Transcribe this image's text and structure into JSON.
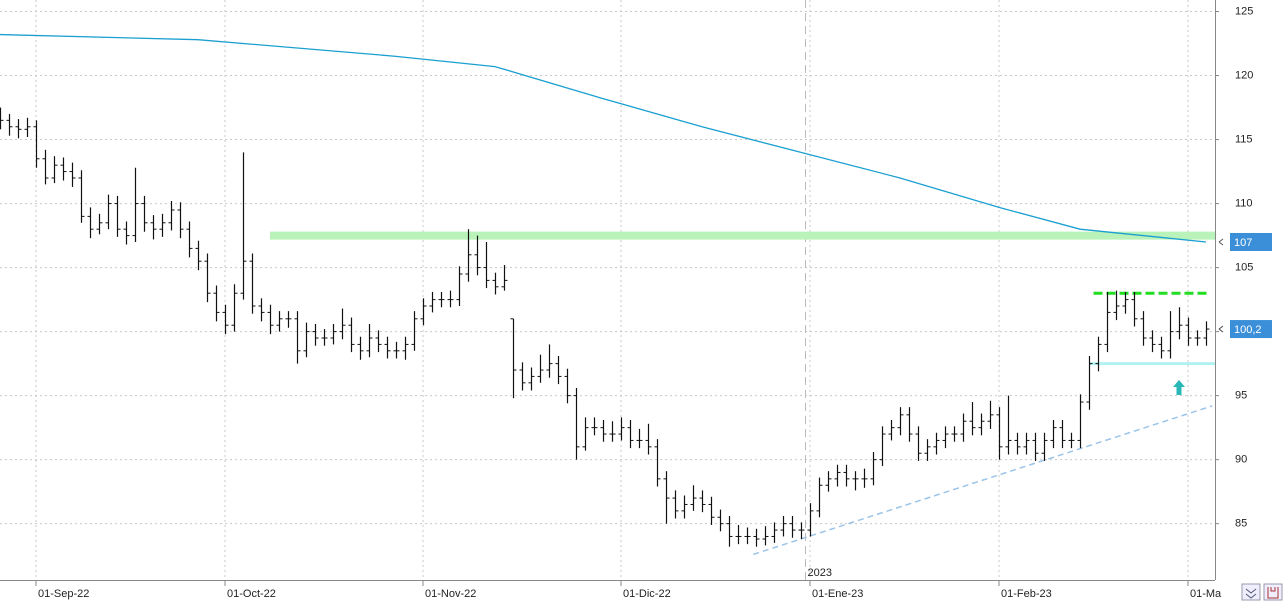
{
  "chart_data": {
    "type": "ohlc",
    "xlim": [
      -4,
      131
    ],
    "ylim": [
      80.6,
      125.9
    ],
    "yticks": [
      85,
      90,
      95,
      100,
      105,
      110,
      115,
      120,
      125
    ],
    "xticks": [
      {
        "value": 0,
        "label": "01-Sep-22"
      },
      {
        "value": 21,
        "label": "01-Oct-22"
      },
      {
        "value": 43,
        "label": "01-Nov-22"
      },
      {
        "value": 65,
        "label": "01-Dic-22"
      },
      {
        "value": 86,
        "label": "01-Ene-23"
      },
      {
        "value": 107,
        "label": "01-Feb-23"
      },
      {
        "value": 128,
        "label": "01-Ma"
      }
    ],
    "year_marker": {
      "value": 85.5,
      "label": "2023"
    },
    "grid": true,
    "bar_color": "#111111",
    "x": [
      -4,
      -3,
      -2,
      -1,
      0,
      1,
      2,
      3,
      4,
      5,
      6,
      7,
      8,
      9,
      10,
      11,
      12,
      13,
      14,
      15,
      16,
      17,
      18,
      19,
      20,
      21,
      22,
      23,
      24,
      25,
      26,
      27,
      28,
      29,
      30,
      31,
      32,
      33,
      34,
      35,
      36,
      37,
      38,
      39,
      40,
      41,
      42,
      43,
      44,
      45,
      46,
      47,
      48,
      49,
      50,
      51,
      52,
      53,
      54,
      55,
      56,
      57,
      58,
      59,
      60,
      61,
      62,
      63,
      64,
      65,
      66,
      67,
      68,
      69,
      70,
      71,
      72,
      73,
      74,
      75,
      76,
      77,
      78,
      79,
      80,
      81,
      82,
      83,
      84,
      85,
      86,
      87,
      88,
      89,
      90,
      91,
      92,
      93,
      94,
      95,
      96,
      97,
      98,
      99,
      100,
      101,
      102,
      103,
      104,
      105,
      106,
      107,
      108,
      109,
      110,
      111,
      112,
      113,
      114,
      115,
      116,
      117,
      118,
      119,
      120,
      121,
      122,
      123,
      124,
      125,
      126,
      127,
      128,
      129,
      130
    ],
    "ohlc": [
      [
        117,
        117.5,
        115.8,
        116.5
      ],
      [
        116.5,
        117,
        115.3,
        116
      ],
      [
        116,
        116.6,
        115.1,
        115.8
      ],
      [
        115.8,
        116.7,
        115.2,
        116
      ],
      [
        116,
        116.5,
        112.8,
        113.5
      ],
      [
        113.5,
        114.2,
        111.5,
        112
      ],
      [
        112,
        113.7,
        111.6,
        113
      ],
      [
        113,
        113.6,
        111.8,
        112.5
      ],
      [
        112.5,
        113.2,
        111.3,
        112
      ],
      [
        112,
        112.6,
        108.5,
        109
      ],
      [
        109,
        109.7,
        107.3,
        108
      ],
      [
        108,
        109.2,
        107.6,
        108.5
      ],
      [
        108.5,
        110.7,
        108,
        110
      ],
      [
        110,
        110.6,
        107.4,
        108
      ],
      [
        108,
        108.6,
        106.8,
        107.5
      ],
      [
        107.5,
        112.8,
        107,
        110
      ],
      [
        110,
        110.6,
        107.8,
        108.5
      ],
      [
        108.5,
        109.1,
        107.2,
        108
      ],
      [
        108,
        109.2,
        107.4,
        108.5
      ],
      [
        108.5,
        110.2,
        107.9,
        109.5
      ],
      [
        109.5,
        110.1,
        107.3,
        108
      ],
      [
        108,
        108.6,
        105.8,
        106.5
      ],
      [
        106.5,
        107.1,
        104.8,
        105.5
      ],
      [
        105.5,
        106.1,
        102.3,
        103
      ],
      [
        103,
        103.6,
        100.8,
        101.5
      ],
      [
        101.5,
        102.1,
        99.8,
        100.5
      ],
      [
        100.5,
        103.7,
        100,
        103
      ],
      [
        103,
        114,
        102.5,
        105.5
      ],
      [
        105.5,
        106.1,
        101.4,
        102
      ],
      [
        102,
        102.6,
        100.8,
        101.5
      ],
      [
        101.5,
        102.1,
        99.8,
        100.5
      ],
      [
        100.5,
        101.6,
        100,
        101
      ],
      [
        101,
        101.6,
        100.3,
        101
      ],
      [
        101,
        101.6,
        97.5,
        98.5
      ],
      [
        98.5,
        100.7,
        98,
        100
      ],
      [
        100,
        100.6,
        98.9,
        99.5
      ],
      [
        99.5,
        100.2,
        98.9,
        99.5
      ],
      [
        99.5,
        100.6,
        99,
        100
      ],
      [
        100,
        101.8,
        99.4,
        100.5
      ],
      [
        100.5,
        101.1,
        98.4,
        99
      ],
      [
        99,
        99.6,
        97.8,
        98.5
      ],
      [
        98.5,
        100.6,
        98,
        99.5
      ],
      [
        99.5,
        100.1,
        98.4,
        99
      ],
      [
        99,
        99.6,
        97.9,
        98.5
      ],
      [
        98.5,
        99.2,
        97.9,
        98.5
      ],
      [
        98.5,
        99.6,
        97.8,
        99
      ],
      [
        99,
        101.6,
        98.5,
        101
      ],
      [
        101,
        102.6,
        100.5,
        102
      ],
      [
        102,
        103.1,
        101.5,
        102.5
      ],
      [
        102.5,
        103.1,
        101.9,
        102.5
      ],
      [
        102.5,
        103.2,
        101.9,
        102.5
      ],
      [
        102.5,
        105.1,
        102,
        104.5
      ],
      [
        104.5,
        108,
        103.9,
        106
      ],
      [
        106,
        107.5,
        104.4,
        105
      ],
      [
        105,
        107,
        103.4,
        104
      ],
      [
        104,
        104.6,
        102.9,
        103.5
      ],
      [
        103.5,
        105.2,
        103.2,
        104
      ],
      [
        101,
        101,
        94.8,
        97
      ],
      [
        97,
        97.6,
        95.4,
        96
      ],
      [
        96,
        97.2,
        95.4,
        96.5
      ],
      [
        96.5,
        98.2,
        96,
        97
      ],
      [
        97,
        99,
        96.4,
        97.5
      ],
      [
        97.5,
        98.1,
        95.9,
        96.5
      ],
      [
        96.5,
        97.1,
        94.4,
        95
      ],
      [
        95,
        95.6,
        90,
        91
      ],
      [
        91,
        93.3,
        90.7,
        92.5
      ],
      [
        92.5,
        93.3,
        91.9,
        92.5
      ],
      [
        92.5,
        93.1,
        91.4,
        92
      ],
      [
        92,
        93,
        91.4,
        92
      ],
      [
        92,
        93.3,
        91.5,
        92.5
      ],
      [
        92.5,
        93.1,
        90.9,
        91.5
      ],
      [
        91.5,
        92.4,
        90.9,
        91.5
      ],
      [
        91.5,
        92.8,
        90.4,
        91
      ],
      [
        91,
        91.6,
        87.9,
        88.5
      ],
      [
        88.5,
        89.1,
        85,
        87
      ],
      [
        87,
        87.6,
        85.4,
        86
      ],
      [
        86,
        87.2,
        85.4,
        86.5
      ],
      [
        86.5,
        88,
        86,
        87
      ],
      [
        87,
        87.6,
        85.9,
        86.5
      ],
      [
        86.5,
        87.1,
        84.9,
        85.5
      ],
      [
        85.5,
        86.1,
        84.4,
        85
      ],
      [
        85,
        85.6,
        83.2,
        84
      ],
      [
        84,
        84.9,
        83.4,
        84
      ],
      [
        84,
        84.7,
        83.4,
        84
      ],
      [
        84,
        84.6,
        83.2,
        83.8
      ],
      [
        83.8,
        84.8,
        83.3,
        84
      ],
      [
        84,
        85.1,
        83.5,
        84.5
      ],
      [
        84.5,
        85.6,
        84,
        85
      ],
      [
        85,
        85.6,
        83.9,
        84.5
      ],
      [
        84.5,
        85.1,
        83.8,
        84.5
      ],
      [
        84.5,
        86.6,
        84,
        86
      ],
      [
        86,
        88.6,
        85.5,
        88
      ],
      [
        88,
        89.1,
        87.5,
        88.5
      ],
      [
        88.5,
        89.6,
        87.9,
        89
      ],
      [
        89,
        89.6,
        87.9,
        88.5
      ],
      [
        88.5,
        89.1,
        87.6,
        88.5
      ],
      [
        88.5,
        89.3,
        87.8,
        88.5
      ],
      [
        88.5,
        90.6,
        88,
        90
      ],
      [
        90,
        92.6,
        89.5,
        92
      ],
      [
        92,
        93.1,
        91.5,
        92.5
      ],
      [
        92.5,
        94.1,
        91.9,
        93.5
      ],
      [
        93.5,
        94.1,
        91.4,
        92
      ],
      [
        92,
        92.6,
        89.9,
        90.5
      ],
      [
        90.5,
        91.6,
        89.9,
        91
      ],
      [
        91,
        92.1,
        90.4,
        91.5
      ],
      [
        91.5,
        92.6,
        90.9,
        92
      ],
      [
        92,
        92.6,
        91.4,
        92
      ],
      [
        92,
        93.6,
        91.4,
        93
      ],
      [
        93,
        94.5,
        91.9,
        92.5
      ],
      [
        92.5,
        93.6,
        91.9,
        93
      ],
      [
        93,
        94.6,
        92.4,
        93.5
      ],
      [
        93.5,
        94.1,
        90,
        91
      ],
      [
        91,
        95,
        90.4,
        91.5
      ],
      [
        91.5,
        92.1,
        90.4,
        91
      ],
      [
        91,
        92.1,
        90.4,
        91.5
      ],
      [
        91.5,
        92.1,
        89.9,
        90.5
      ],
      [
        90.5,
        92.1,
        89.9,
        91.5
      ],
      [
        91.5,
        93.1,
        90.9,
        92.5
      ],
      [
        92.5,
        93.1,
        90.9,
        91.5
      ],
      [
        91.5,
        92.1,
        90.9,
        91.5
      ],
      [
        91.5,
        95.1,
        90.9,
        94.5
      ],
      [
        94.5,
        98.1,
        93.9,
        97.5
      ],
      [
        97.5,
        99.6,
        96.9,
        99
      ],
      [
        99,
        103.1,
        98.4,
        101.5
      ],
      [
        101.5,
        103.2,
        100.9,
        102
      ],
      [
        102,
        103.1,
        101.4,
        102.5
      ],
      [
        102.5,
        103.1,
        100.4,
        101
      ],
      [
        101,
        101.6,
        98.9,
        99.5
      ],
      [
        99.5,
        100.1,
        98.4,
        99
      ],
      [
        99,
        99.6,
        97.9,
        98.5
      ],
      [
        98.5,
        101.6,
        97.9,
        100
      ],
      [
        100,
        101.9,
        99.4,
        100.5
      ],
      [
        100.5,
        101.1,
        98.9,
        99.5
      ],
      [
        99.5,
        100.1,
        98.9,
        99.5
      ],
      [
        99.5,
        100.8,
        98.9,
        100.2
      ]
    ],
    "moving_average": {
      "color": "#1b9fd0",
      "x": [
        -4,
        18,
        40,
        51,
        63,
        74,
        85,
        96,
        107,
        116,
        130
      ],
      "values": [
        123.2,
        122.8,
        121.5,
        120.7,
        118.2,
        116,
        114,
        112,
        109.7,
        108,
        107
      ]
    },
    "levels": [
      {
        "name": "resistance-band",
        "color": "#b9f3b9",
        "x": [
          26,
          131
        ],
        "values": [
          107.5,
          107.5
        ]
      },
      {
        "name": "recent-high",
        "color": "#22dd22",
        "x": [
          117.5,
          130.5
        ],
        "values": [
          103,
          103
        ]
      },
      {
        "name": "support",
        "color": "#b2f1f1",
        "x": [
          117,
          131
        ],
        "values": [
          97.5,
          97.5
        ]
      },
      {
        "name": "trendline",
        "color": "#9cc4ea",
        "x": [
          79.7,
          130.7
        ],
        "values": [
          82.6,
          94.2
        ]
      }
    ],
    "arrow": {
      "color": "#2ab7b7",
      "x": 127,
      "value": 95.6
    },
    "price_labels": [
      {
        "value": 107,
        "label": "107"
      },
      {
        "value": 100.2,
        "label": "100,2"
      }
    ]
  }
}
